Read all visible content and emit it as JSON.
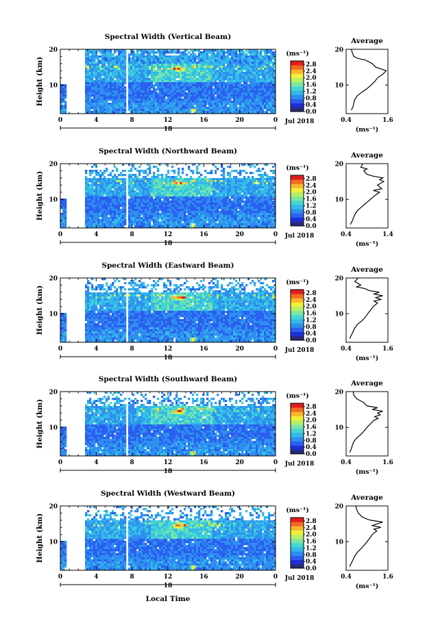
{
  "figure": {
    "xlabel": "Local Time",
    "date_label": "Jul 2018",
    "day_label": "18",
    "colorbar_label": "(ms⁻¹)",
    "avg_title": "Average",
    "avg_xlabel": "(ms⁻¹)",
    "ylabel": "Height (km)"
  },
  "colors": {
    "colormap": [
      "#2a2a7a",
      "#1e2fd6",
      "#2a5ff0",
      "#2e8fef",
      "#33b9ea",
      "#45d6d0",
      "#7ee6a2",
      "#b9ef63",
      "#f2ef3a",
      "#f9b62c",
      "#f56a21",
      "#e01e1e"
    ]
  },
  "chart_data": [
    {
      "type": "heatmap",
      "title": "Spectral Width (Vertical Beam)",
      "x_ticks": [
        "0",
        "4",
        "8",
        "12",
        "16",
        "20",
        "0"
      ],
      "y_ticks": [
        "20",
        "10"
      ],
      "xlim": [
        0,
        24
      ],
      "ylim": [
        2,
        20
      ],
      "colorbar": {
        "ticks": [
          "2.8",
          "2.4",
          "2.0",
          "1.6",
          "1.2",
          "0.8",
          "0.4",
          "0.0"
        ],
        "range": [
          0.0,
          3.0
        ]
      },
      "data_gaps_hours": [
        [
          0.7,
          2.7
        ],
        [
          7.3,
          7.5
        ]
      ],
      "profile": {
        "type": "line",
        "title": "Average",
        "x_ticks": [
          "0.4",
          "1.6"
        ],
        "xlim": [
          0.4,
          1.6
        ],
        "y_ticks": [
          "20",
          "10"
        ],
        "points": [
          [
            0.55,
            3
          ],
          [
            0.6,
            4
          ],
          [
            0.62,
            5
          ],
          [
            0.65,
            6
          ],
          [
            0.72,
            7
          ],
          [
            0.85,
            8
          ],
          [
            1.0,
            9
          ],
          [
            1.12,
            10
          ],
          [
            1.22,
            11
          ],
          [
            1.3,
            12
          ],
          [
            1.45,
            13
          ],
          [
            1.55,
            14
          ],
          [
            1.4,
            14.5
          ],
          [
            1.25,
            15
          ],
          [
            1.15,
            16
          ],
          [
            0.95,
            17
          ],
          [
            0.72,
            17.5
          ],
          [
            0.62,
            18
          ],
          [
            0.58,
            19
          ],
          [
            0.55,
            20
          ]
        ]
      }
    },
    {
      "type": "heatmap",
      "title": "Spectral Width (Northward Beam)",
      "x_ticks": [
        "0",
        "4",
        "8",
        "12",
        "16",
        "20",
        "0"
      ],
      "y_ticks": [
        "20",
        "10"
      ],
      "xlim": [
        0,
        24
      ],
      "ylim": [
        2,
        20
      ],
      "colorbar": {
        "ticks": [
          "2.8",
          "2.4",
          "2.0",
          "1.6",
          "1.2",
          "0.8",
          "0.4",
          "0.0"
        ],
        "range": [
          0.0,
          3.0
        ]
      },
      "data_gaps_hours": [
        [
          0.7,
          2.7
        ],
        [
          7.3,
          7.5
        ]
      ],
      "profile": {
        "type": "line",
        "title": "Average",
        "x_ticks": [
          "0.4",
          "1.4"
        ],
        "xlim": [
          0.4,
          1.4
        ],
        "y_ticks": [
          "20",
          "10"
        ],
        "points": [
          [
            0.5,
            3
          ],
          [
            0.55,
            4
          ],
          [
            0.58,
            5
          ],
          [
            0.62,
            6
          ],
          [
            0.68,
            7
          ],
          [
            0.78,
            8
          ],
          [
            0.88,
            9
          ],
          [
            0.98,
            10
          ],
          [
            1.08,
            11
          ],
          [
            1.2,
            12
          ],
          [
            1.05,
            12.5
          ],
          [
            1.25,
            13
          ],
          [
            1.15,
            14
          ],
          [
            1.3,
            15
          ],
          [
            1.2,
            15.5
          ],
          [
            1.28,
            16
          ],
          [
            1.05,
            16.5
          ],
          [
            0.9,
            17
          ],
          [
            0.82,
            18
          ],
          [
            0.9,
            18.5
          ],
          [
            0.75,
            19
          ],
          [
            0.8,
            20
          ]
        ]
      }
    },
    {
      "type": "heatmap",
      "title": "Spectral Width (Eastward Beam)",
      "x_ticks": [
        "0",
        "4",
        "8",
        "12",
        "16",
        "20",
        "0"
      ],
      "y_ticks": [
        "20",
        "10"
      ],
      "xlim": [
        0,
        24
      ],
      "ylim": [
        2,
        20
      ],
      "colorbar": {
        "ticks": [
          "2.8",
          "2.4",
          "2.0",
          "1.6",
          "1.2",
          "0.8",
          "0.4",
          "0.0"
        ],
        "range": [
          0.0,
          3.0
        ]
      },
      "data_gaps_hours": [
        [
          0.7,
          2.7
        ],
        [
          7.3,
          7.5
        ]
      ],
      "profile": {
        "type": "line",
        "title": "Average",
        "x_ticks": [
          "0.4",
          "1.6"
        ],
        "xlim": [
          0.4,
          1.6
        ],
        "y_ticks": [
          "20",
          "10"
        ],
        "points": [
          [
            0.5,
            3
          ],
          [
            0.55,
            4
          ],
          [
            0.6,
            5
          ],
          [
            0.65,
            6
          ],
          [
            0.72,
            7
          ],
          [
            0.85,
            8
          ],
          [
            0.95,
            9
          ],
          [
            1.02,
            10
          ],
          [
            1.1,
            11
          ],
          [
            1.18,
            12
          ],
          [
            1.3,
            13
          ],
          [
            1.2,
            13.5
          ],
          [
            1.4,
            14
          ],
          [
            1.25,
            14.5
          ],
          [
            1.45,
            15
          ],
          [
            1.2,
            15.5
          ],
          [
            1.35,
            16
          ],
          [
            1.05,
            16.5
          ],
          [
            0.95,
            17
          ],
          [
            0.7,
            17.5
          ],
          [
            0.82,
            18
          ],
          [
            0.65,
            19
          ],
          [
            0.75,
            20
          ]
        ]
      }
    },
    {
      "type": "heatmap",
      "title": "Spectral Width (Southward Beam)",
      "x_ticks": [
        "0",
        "4",
        "8",
        "12",
        "16",
        "20",
        "0"
      ],
      "y_ticks": [
        "20",
        "10"
      ],
      "xlim": [
        0,
        24
      ],
      "ylim": [
        2,
        20
      ],
      "colorbar": {
        "ticks": [
          "2.8",
          "2.4",
          "2.0",
          "1.6",
          "1.2",
          "0.8",
          "0.4",
          "0.0"
        ],
        "range": [
          0.0,
          3.0
        ]
      },
      "data_gaps_hours": [
        [
          0.7,
          2.7
        ],
        [
          7.3,
          7.5
        ]
      ],
      "profile": {
        "type": "line",
        "title": "Average",
        "x_ticks": [
          "0.4",
          "1.6"
        ],
        "xlim": [
          0.4,
          1.6
        ],
        "y_ticks": [
          "20",
          "10"
        ],
        "points": [
          [
            0.5,
            3
          ],
          [
            0.55,
            4
          ],
          [
            0.58,
            5
          ],
          [
            0.62,
            6
          ],
          [
            0.7,
            7
          ],
          [
            0.82,
            8
          ],
          [
            0.92,
            9
          ],
          [
            1.0,
            10
          ],
          [
            1.1,
            11
          ],
          [
            1.2,
            12
          ],
          [
            1.32,
            12.5
          ],
          [
            1.22,
            13
          ],
          [
            1.38,
            13.5
          ],
          [
            1.3,
            14
          ],
          [
            1.45,
            14.5
          ],
          [
            1.15,
            15
          ],
          [
            1.3,
            15.5
          ],
          [
            1.0,
            16
          ],
          [
            0.9,
            17
          ],
          [
            0.8,
            17.5
          ],
          [
            0.7,
            18
          ],
          [
            0.62,
            19
          ],
          [
            0.6,
            20
          ]
        ]
      }
    },
    {
      "type": "heatmap",
      "title": "Spectral Width (Westward Beam)",
      "x_ticks": [
        "0",
        "4",
        "8",
        "12",
        "16",
        "20",
        "0"
      ],
      "y_ticks": [
        "20",
        "10"
      ],
      "xlim": [
        0,
        24
      ],
      "ylim": [
        2,
        20
      ],
      "colorbar": {
        "ticks": [
          "2.8",
          "2.4",
          "2.0",
          "1.6",
          "1.2",
          "0.8",
          "0.4",
          "0.0"
        ],
        "range": [
          0.0,
          3.0
        ]
      },
      "data_gaps_hours": [
        [
          0.7,
          2.7
        ],
        [
          7.3,
          7.5
        ]
      ],
      "profile": {
        "type": "line",
        "title": "Average",
        "x_ticks": [
          "0.4",
          "1.6"
        ],
        "xlim": [
          0.4,
          1.6
        ],
        "y_ticks": [
          "20",
          "10"
        ],
        "points": [
          [
            0.5,
            3
          ],
          [
            0.55,
            4
          ],
          [
            0.6,
            5
          ],
          [
            0.65,
            6
          ],
          [
            0.72,
            7
          ],
          [
            0.82,
            8
          ],
          [
            0.92,
            9
          ],
          [
            1.0,
            10
          ],
          [
            1.08,
            11
          ],
          [
            1.15,
            12
          ],
          [
            1.28,
            13
          ],
          [
            1.2,
            13.5
          ],
          [
            1.4,
            14
          ],
          [
            1.15,
            14.5
          ],
          [
            1.3,
            15
          ],
          [
            1.45,
            15.5
          ],
          [
            1.1,
            16
          ],
          [
            0.95,
            16.5
          ],
          [
            0.85,
            17
          ],
          [
            0.75,
            18
          ],
          [
            0.7,
            19
          ],
          [
            0.68,
            20
          ]
        ]
      }
    }
  ]
}
